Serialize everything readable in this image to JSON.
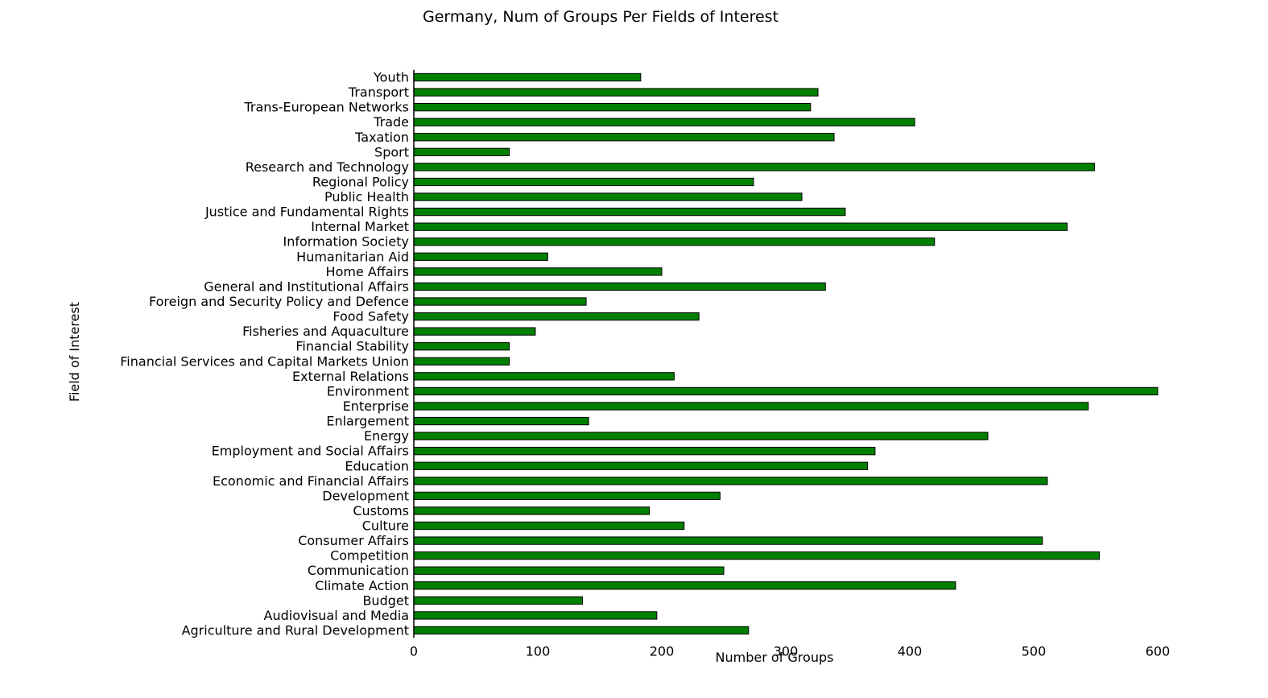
{
  "chart_data": {
    "type": "bar",
    "orientation": "horizontal",
    "title": "Germany, Num of Groups Per Fields of Interest",
    "xlabel": "Number of Groups",
    "ylabel": "Field of Interest",
    "xlim": [
      0,
      600
    ],
    "xticks": [
      0,
      100,
      200,
      300,
      400,
      500,
      600
    ],
    "grid": false,
    "legend": "none",
    "bar_color": "#008000",
    "bar_edge_color": "#000000",
    "categories": [
      "Agriculture and Rural Development",
      "Audiovisual and Media",
      "Budget",
      "Climate Action",
      "Communication",
      "Competition",
      "Consumer Affairs",
      "Culture",
      "Customs",
      "Development",
      "Economic and Financial Affairs",
      "Education",
      "Employment and Social Affairs",
      "Energy",
      "Enlargement",
      "Enterprise",
      "Environment",
      "External Relations",
      "Financial Services and Capital Markets Union",
      "Financial Stability",
      "Fisheries and Aquaculture",
      "Food Safety",
      "Foreign and Security Policy and Defence",
      "General and Institutional Affairs",
      "Home Affairs",
      "Humanitarian Aid",
      "Information Society",
      "Internal Market",
      "Justice and Fundamental Rights",
      "Public Health",
      "Regional Policy",
      "Research and Technology",
      "Sport",
      "Taxation",
      "Trade",
      "Trans-European Networks",
      "Transport",
      "Youth"
    ],
    "values": [
      270,
      196,
      136,
      437,
      250,
      553,
      507,
      218,
      190,
      247,
      511,
      366,
      372,
      463,
      141,
      544,
      600,
      210,
      77,
      77,
      98,
      230,
      139,
      332,
      200,
      108,
      420,
      527,
      348,
      313,
      274,
      549,
      77,
      339,
      404,
      320,
      326,
      183
    ]
  }
}
